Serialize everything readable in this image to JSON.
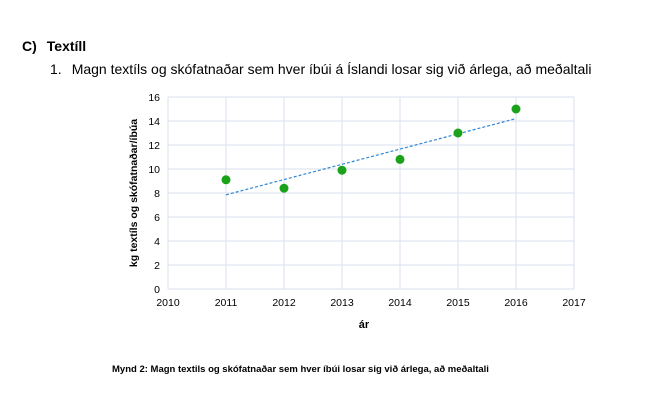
{
  "heading": {
    "marker": "C)",
    "text": "Textíll"
  },
  "list_item": {
    "marker": "1.",
    "text": "Magn textíls og skófatnaðar sem hver íbúi á Íslandi losar sig við árlega, að meðaltali"
  },
  "caption": "Mynd 2: Magn textils og skófatnaðar sem hver íbúi losar sig við árlega, að meðaltali",
  "chart_data": {
    "type": "scatter",
    "xlabel": "ár",
    "ylabel": "kg textíls og skófatnaðar/íbúa",
    "xlim": [
      2010,
      2017
    ],
    "ylim": [
      0,
      16
    ],
    "xticks": [
      2010,
      2011,
      2012,
      2013,
      2014,
      2015,
      2016,
      2017
    ],
    "yticks": [
      0,
      2,
      4,
      6,
      8,
      10,
      12,
      14,
      16
    ],
    "grid": true,
    "x": [
      2011,
      2012,
      2013,
      2014,
      2015,
      2016
    ],
    "y": [
      9.1,
      8.4,
      9.9,
      10.8,
      13.0,
      15.0
    ],
    "trendline": {
      "type": "linear",
      "x": [
        2011,
        2016
      ],
      "y": [
        7.85,
        14.2
      ]
    },
    "marker_color": "#1aa31a",
    "trend_color": "#2e86d6"
  }
}
